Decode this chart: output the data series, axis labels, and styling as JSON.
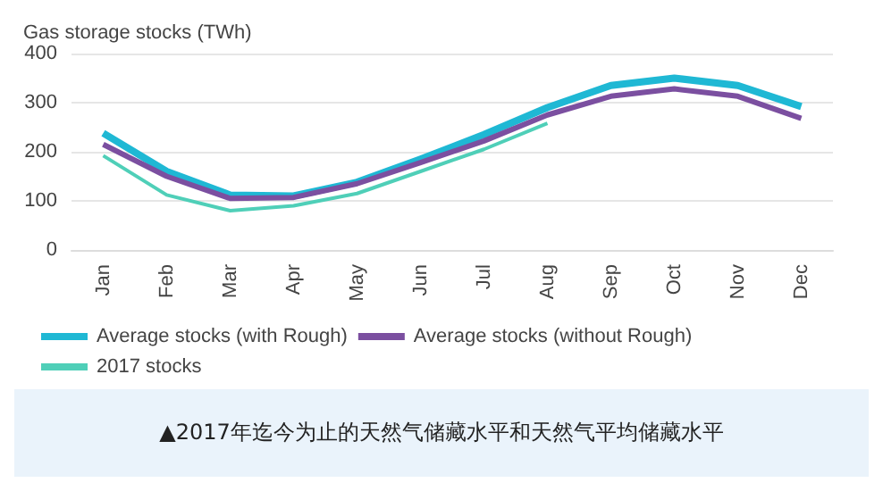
{
  "chart_data": {
    "type": "line",
    "ylabel": "Gas storage stocks (TWh)",
    "categories": [
      "Jan",
      "Feb",
      "Mar",
      "Apr",
      "May",
      "Jun",
      "Jul",
      "Aug",
      "Sep",
      "Oct",
      "Nov",
      "Dec"
    ],
    "series": [
      {
        "name": "Average stocks (with Rough)",
        "color": "#1fb8d4",
        "values": [
          238,
          160,
          112,
          110,
          138,
          185,
          235,
          290,
          335,
          350,
          335,
          292
        ]
      },
      {
        "name": "Average stocks (without Rough)",
        "color": "#7b4fa0",
        "values": [
          215,
          150,
          105,
          107,
          135,
          178,
          222,
          275,
          313,
          328,
          313,
          268
        ]
      },
      {
        "name": "2017 stocks",
        "color": "#4fcfb8",
        "values": [
          192,
          112,
          80,
          90,
          115,
          160,
          205,
          258,
          null,
          null,
          null,
          null
        ]
      }
    ],
    "ylim": [
      0,
      400
    ],
    "yticks": [
      0,
      100,
      200,
      300,
      400
    ],
    "grid": "y",
    "legend": "bottom",
    "marker": "none",
    "line_style": "solid",
    "annotations": [
      "▲2017年迄今为止的天然气储藏水平和天然气平均储藏水平"
    ]
  }
}
